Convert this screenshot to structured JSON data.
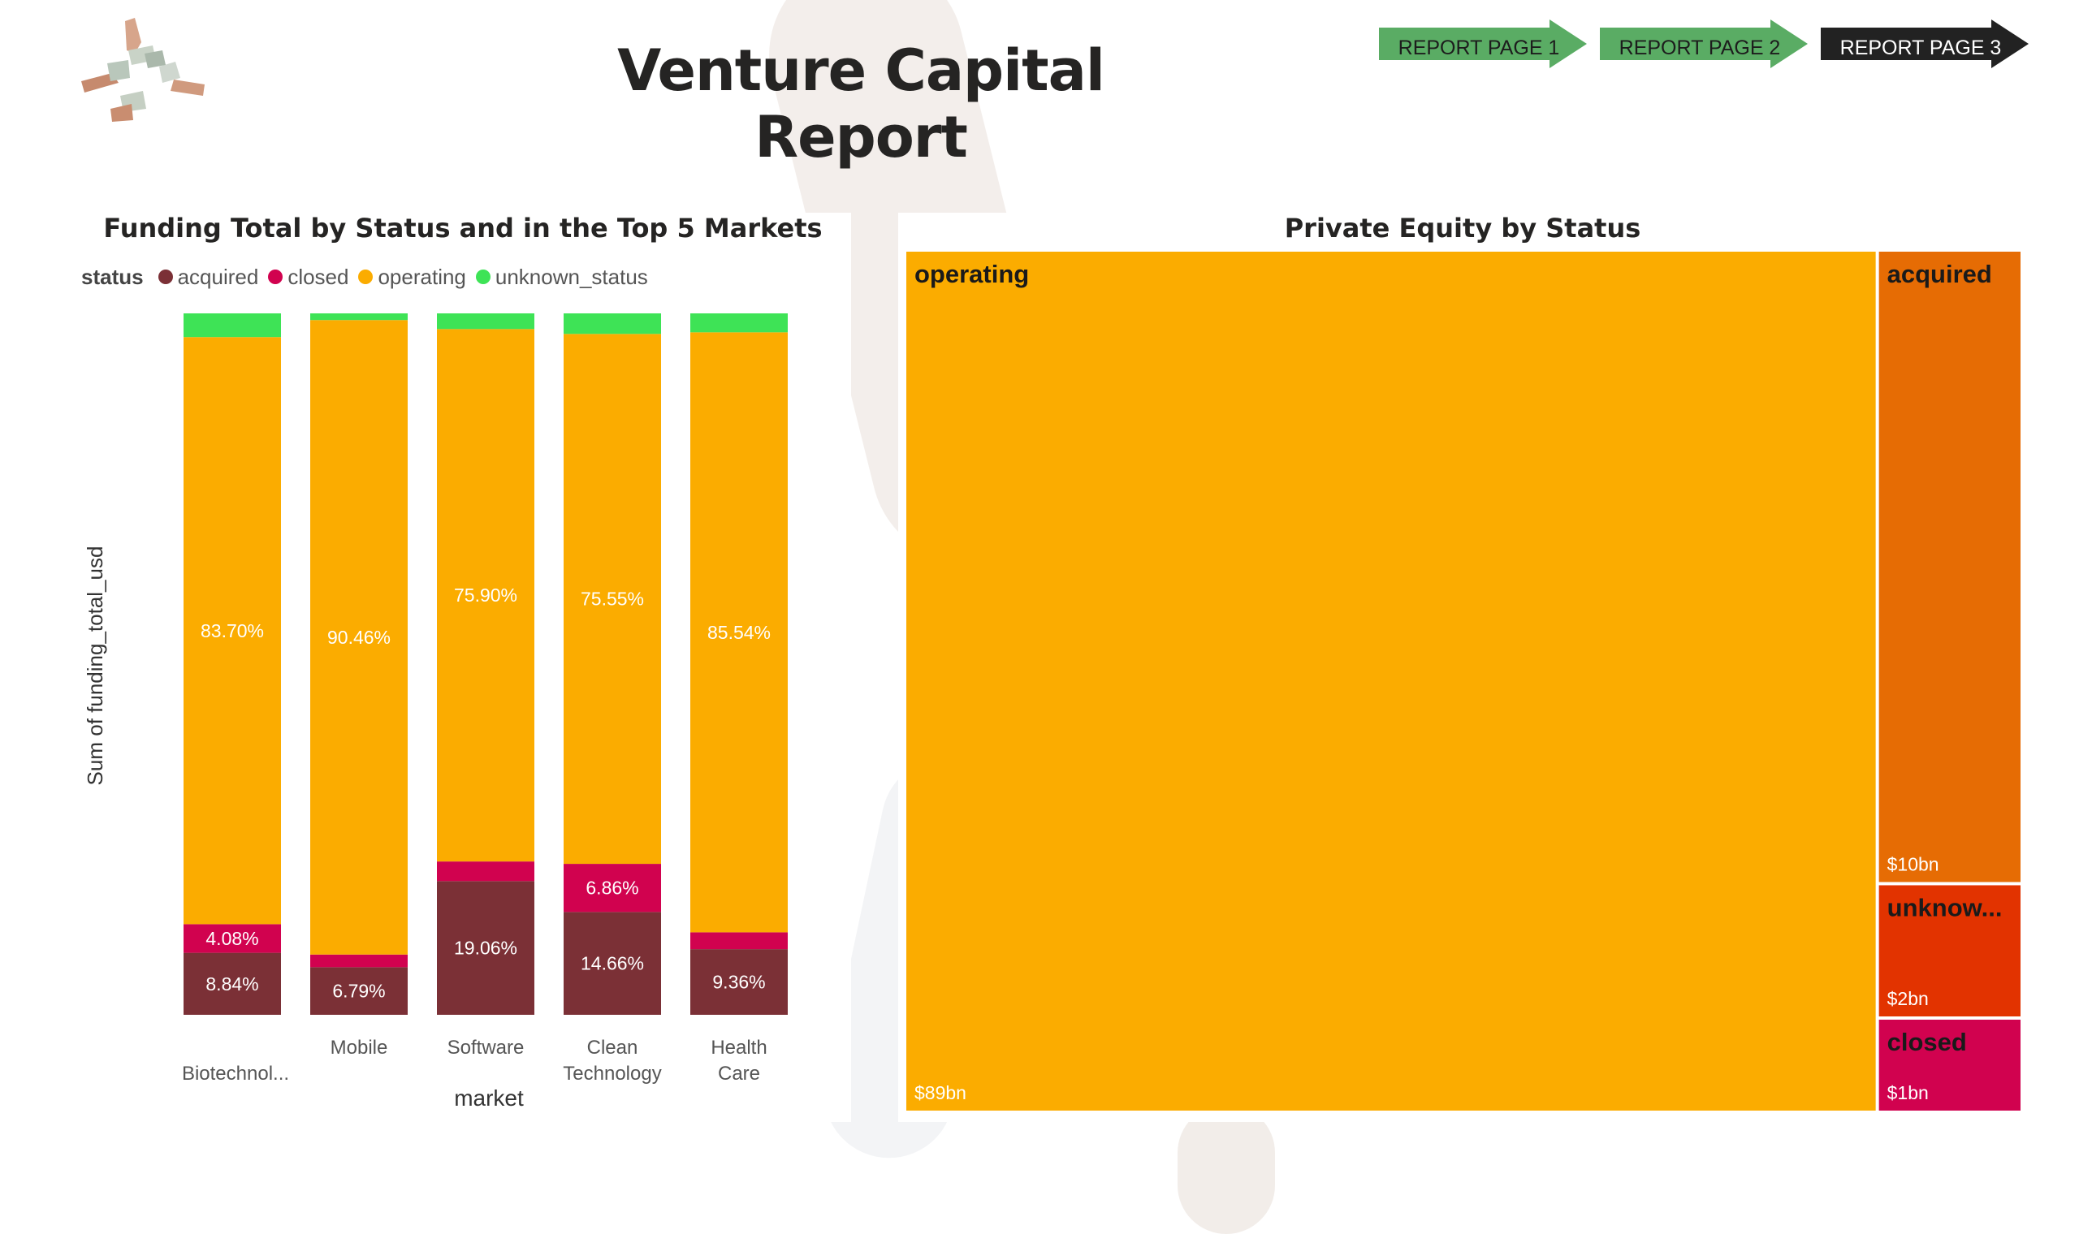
{
  "header": {
    "title": "Venture Capital Report",
    "nav": [
      {
        "label": "REPORT PAGE 1"
      },
      {
        "label": "REPORT PAGE 2"
      },
      {
        "label": "REPORT PAGE 3"
      }
    ]
  },
  "chart_data": [
    {
      "type": "bar",
      "stacked": "100%",
      "title": "Funding Total by Status and in the Top 5 Markets",
      "xlabel": "market",
      "ylabel": "Sum of funding_total_usd",
      "legend": {
        "title": "status",
        "placement": "top-left"
      },
      "categories": [
        "Biotechnol...",
        "Mobile",
        "Software",
        "Clean Technology",
        "Health Care"
      ],
      "series": [
        {
          "name": "acquired",
          "color": "#7b3036",
          "values": [
            8.84,
            6.79,
            19.06,
            14.66,
            9.36
          ],
          "labels": [
            "8.84%",
            "6.79%",
            "19.06%",
            "14.66%",
            "9.36%"
          ]
        },
        {
          "name": "closed",
          "color": "#d1024f",
          "values": [
            4.08,
            1.8,
            2.8,
            6.86,
            2.4
          ],
          "labels": [
            "4.08%",
            "",
            "",
            "6.86%",
            ""
          ]
        },
        {
          "name": "operating",
          "color": "#fbac00",
          "values": [
            83.7,
            90.46,
            75.9,
            75.55,
            85.54
          ],
          "labels": [
            "83.70%",
            "90.46%",
            "75.90%",
            "75.55%",
            "85.54%"
          ]
        },
        {
          "name": "unknown_status",
          "color": "#3ee356",
          "values": [
            3.38,
            0.95,
            2.24,
            2.93,
            2.7
          ],
          "labels": [
            "",
            "",
            "",
            "",
            ""
          ]
        }
      ]
    },
    {
      "type": "treemap",
      "title": "Private Equity by Status",
      "unit": "USD",
      "items": [
        {
          "name": "operating",
          "label": "operating",
          "value": 89,
          "value_label": "$89bn",
          "color": "#fbac00"
        },
        {
          "name": "acquired",
          "label": "acquired",
          "value": 10,
          "value_label": "$10bn",
          "color": "#e66c04"
        },
        {
          "name": "unknown_status",
          "label": "unknow...",
          "value": 2,
          "value_label": "$2bn",
          "color": "#e23300"
        },
        {
          "name": "closed",
          "label": "closed",
          "value": 1,
          "value_label": "$1bn",
          "color": "#d1024f"
        }
      ]
    }
  ]
}
